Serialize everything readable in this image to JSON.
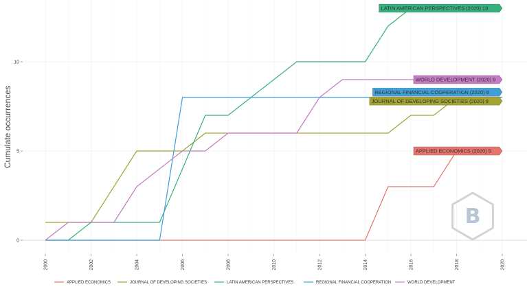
{
  "chart_data": {
    "type": "line",
    "ylabel": "Cumulate occurrences",
    "xlabel": "",
    "xlim": [
      1999.1,
      2020.3
    ],
    "ylim": [
      -0.7,
      13.5
    ],
    "x_ticks": [
      2000,
      2002,
      2004,
      2006,
      2008,
      2010,
      2012,
      2014,
      2016,
      2018,
      2020
    ],
    "y_ticks": [
      0,
      5,
      10
    ],
    "grid": true,
    "legend_position": "bottom",
    "series": [
      {
        "name": "APPLIED ECONOMICS",
        "color": "#e8736c",
        "end_label": "APPLIED ECONOMICS (2020) 5",
        "x": [
          2000,
          2014,
          2015,
          2017,
          2018,
          2019,
          2020
        ],
        "y": [
          0,
          0,
          3,
          3,
          5,
          5,
          5
        ]
      },
      {
        "name": "JOURNAL OF DEVELOPING SOCIETIES",
        "color": "#a3a332",
        "end_label": "JOURNAL OF DEVELOPING SOCIETIES (2020) 8",
        "x": [
          2000,
          2001,
          2002,
          2004,
          2005,
          2006,
          2007,
          2008,
          2014,
          2015,
          2016,
          2017,
          2018,
          2020
        ],
        "y": [
          1,
          1,
          1,
          5,
          5,
          5,
          6,
          6,
          6,
          6,
          7,
          7,
          8,
          8
        ]
      },
      {
        "name": "LATIN AMERICAN PERSPECTIVES",
        "color": "#36b17d",
        "end_label": "LATIN AMERICAN PERSPECTIVES (2020) 13",
        "x": [
          2000,
          2001,
          2002,
          2005,
          2007,
          2008,
          2011,
          2014,
          2015,
          2016,
          2020
        ],
        "y": [
          0,
          0,
          1,
          1,
          7,
          7,
          10,
          10,
          12,
          13,
          13
        ]
      },
      {
        "name": "REGIONAL FINANCIAL COOPERATION",
        "color": "#3f9fd8",
        "end_label": "REGIONAL FINANCIAL COOPERATION (2020) 8",
        "x": [
          2000,
          2005,
          2006,
          2020
        ],
        "y": [
          0,
          0,
          8,
          8
        ]
      },
      {
        "name": "WORLD DEVELOPMENT",
        "color": "#c47bc4",
        "end_label": "WORLD DEVELOPMENT (2020) 9",
        "x": [
          2000,
          2001,
          2003,
          2004,
          2006,
          2007,
          2008,
          2011,
          2012,
          2013,
          2020
        ],
        "y": [
          0,
          1,
          1,
          3,
          5,
          5,
          6,
          6,
          8,
          9,
          9
        ]
      }
    ],
    "watermark": "B"
  }
}
